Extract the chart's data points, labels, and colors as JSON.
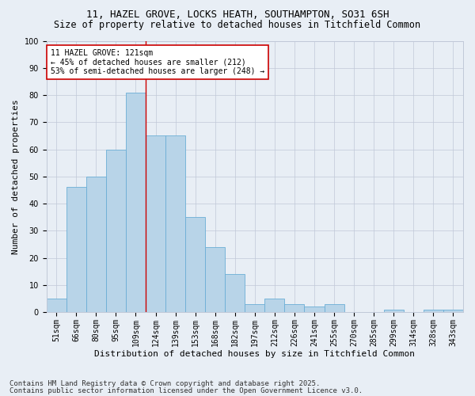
{
  "title_line1": "11, HAZEL GROVE, LOCKS HEATH, SOUTHAMPTON, SO31 6SH",
  "title_line2": "Size of property relative to detached houses in Titchfield Common",
  "xlabel": "Distribution of detached houses by size in Titchfield Common",
  "ylabel": "Number of detached properties",
  "categories": [
    "51sqm",
    "66sqm",
    "80sqm",
    "95sqm",
    "109sqm",
    "124sqm",
    "139sqm",
    "153sqm",
    "168sqm",
    "182sqm",
    "197sqm",
    "212sqm",
    "226sqm",
    "241sqm",
    "255sqm",
    "270sqm",
    "285sqm",
    "299sqm",
    "314sqm",
    "328sqm",
    "343sqm"
  ],
  "values": [
    5,
    46,
    50,
    60,
    81,
    65,
    65,
    35,
    24,
    14,
    3,
    5,
    3,
    2,
    3,
    0,
    0,
    1,
    0,
    1,
    1
  ],
  "bar_color": "#b8d4e8",
  "bar_edge_color": "#6baed6",
  "ref_line_x": 4.5,
  "ref_line_color": "#cc0000",
  "annotation_text": "11 HAZEL GROVE: 121sqm\n← 45% of detached houses are smaller (212)\n53% of semi-detached houses are larger (248) →",
  "annotation_box_color": "#ffffff",
  "annotation_box_edge": "#cc0000",
  "ylim": [
    0,
    100
  ],
  "yticks": [
    0,
    10,
    20,
    30,
    40,
    50,
    60,
    70,
    80,
    90,
    100
  ],
  "bg_color": "#e8eef5",
  "plot_bg_color": "#e8eef5",
  "footer1": "Contains HM Land Registry data © Crown copyright and database right 2025.",
  "footer2": "Contains public sector information licensed under the Open Government Licence v3.0.",
  "title_fontsize": 9,
  "subtitle_fontsize": 8.5,
  "ylabel_fontsize": 8,
  "xlabel_fontsize": 8,
  "tick_fontsize": 7,
  "annot_fontsize": 7,
  "footer_fontsize": 6.5
}
